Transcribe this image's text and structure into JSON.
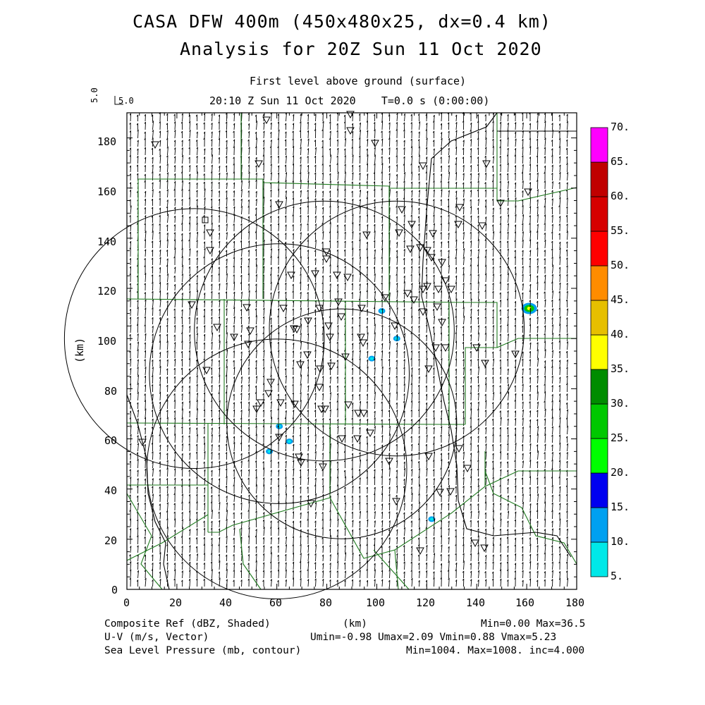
{
  "header": {
    "title_line1": "CASA DFW 400m (450x480x25, dx=0.4 km)",
    "title_line2": "Analysis for 20Z Sun 11 Oct 2020",
    "level": "First level above ground (surface)",
    "time": "20:10 Z Sun 11 Oct 2020    T=0.0 s (0:00:00)",
    "vector_scale_rot": "5.0",
    "vector_scale": "5.0"
  },
  "axes": {
    "ylabel": "(km)",
    "xlabel": "(km)",
    "xticks": [
      "0",
      "20",
      "40",
      "60",
      "80",
      "100",
      "120",
      "140",
      "160",
      "180"
    ],
    "yticks": [
      "0",
      "20",
      "40",
      "60",
      "80",
      "100",
      "120",
      "140",
      "160",
      "180"
    ]
  },
  "colorbar": {
    "labels": [
      "5.",
      "10.",
      "15.",
      "20.",
      "25.",
      "30.",
      "35.",
      "40.",
      "45.",
      "50.",
      "55.",
      "60.",
      "65.",
      "70."
    ],
    "colors": [
      "#00e8e8",
      "#00a0f0",
      "#0000f0",
      "#00ff00",
      "#00c800",
      "#008c00",
      "#ffff00",
      "#e6bf00",
      "#ff8c00",
      "#ff0000",
      "#d60000",
      "#c00000",
      "#ff00ff"
    ]
  },
  "footer": {
    "left1": "Composite Ref (dBZ, Shaded)",
    "left2": "U-V (m/s, Vector)",
    "left3": "Sea Level Pressure (mb, contour)",
    "center1": "(km)",
    "right1": "Min=0.00 Max=36.5",
    "right2": "Umin=-0.98 Umax=2.09 Vmin=0.88 Vmax=5.23",
    "right3": "Min=1004. Max=1008. inc=4.000"
  },
  "map_data": {
    "x_range_km": [
      0,
      180
    ],
    "y_range_km": [
      0,
      190
    ],
    "radar_rings": [
      {
        "cx": 27,
        "cy": 100,
        "r": 52
      },
      {
        "cx": 79,
        "cy": 103,
        "r": 52
      },
      {
        "cx": 61,
        "cy": 86,
        "r": 52
      },
      {
        "cx": 108,
        "cy": 104,
        "r": 51
      },
      {
        "cx": 60,
        "cy": 48,
        "r": 52
      },
      {
        "cx": 86,
        "cy": 66,
        "r": 46
      }
    ],
    "echoes": [
      {
        "x": 161,
        "y": 112,
        "dbz": 30
      },
      {
        "x": 102,
        "y": 111,
        "dbz": 12
      },
      {
        "x": 98,
        "y": 92,
        "dbz": 10
      },
      {
        "x": 61,
        "y": 65,
        "dbz": 12
      },
      {
        "x": 65,
        "y": 59,
        "dbz": 12
      },
      {
        "x": 122,
        "y": 28,
        "dbz": 12
      },
      {
        "x": 57,
        "y": 55,
        "dbz": 8
      },
      {
        "x": 108,
        "y": 100,
        "dbz": 8
      }
    ]
  }
}
